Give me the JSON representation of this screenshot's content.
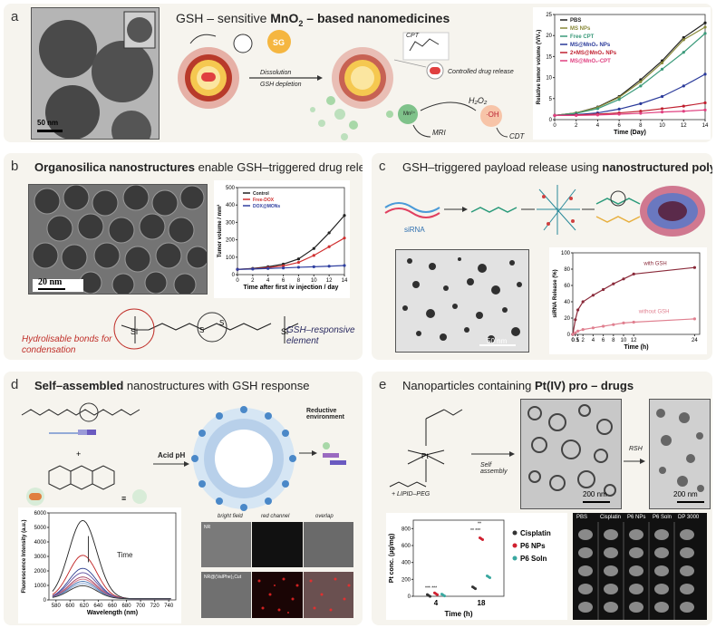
{
  "panels": {
    "a": {
      "label": "a",
      "title_pre": "GSH – sensitive ",
      "title_bold": "MnO",
      "title_sub": "2",
      "title_bold2": " – based nanomedicines",
      "scale": "50 nm",
      "sg": "SG",
      "cpt": "CPT",
      "dissolution": "Dissolution",
      "gsh_depletion": "GSH depletion",
      "controlled": "Controlled drug release",
      "h2o2": "H₂O₂",
      "mn": "Mn²⁺",
      "oh": "·OH",
      "mri": "MRI",
      "cdt": "CDT"
    },
    "b": {
      "label": "b",
      "title_bold": "Organosilica nanostructures",
      "title_post": " enable GSH–triggered drug release",
      "scale": "20 nm",
      "hydrolisable": "Hydrolisable bonds for condensation",
      "gsh_element": "GSH–responsive element"
    },
    "c": {
      "label": "c",
      "title_pre": "GSH–triggered payload release using ",
      "title_bold": "nanostructured polymers",
      "sirna": "siRNA",
      "scale": "50 nm"
    },
    "d": {
      "label": "d",
      "title_bold": "Self–assembled",
      "title_post": " nanostructures with GSH response",
      "acid": "Acid pH",
      "reductive": "Reductive environment",
      "bright": "bright field",
      "red": "red channel",
      "overlap": "overlap",
      "nr": "NR",
      "nr2": "NR@(ValPhe)₂Cut",
      "time": "Time"
    },
    "e": {
      "label": "e",
      "title_pre": "Nanoparticles containing ",
      "title_bold": "Pt(IV) pro – drugs",
      "self_assembly": "Self assembly",
      "lipid": "+ LIPID–PEG",
      "rsh": "RSH",
      "scale1": "200 nm",
      "scale2": "200 nm",
      "pt": "Pt",
      "cols": [
        "PBS",
        "Cisplatin",
        "P6 NPs",
        "P6 Soln",
        "DP 3000"
      ],
      "stars1": "*** ***",
      "stars2": "** ***",
      "stars3": "**"
    }
  },
  "chart_data": [
    {
      "id": "a",
      "type": "line",
      "xlabel": "Time (Day)",
      "ylabel": "Relative tumor volume (V/V₀)",
      "x": [
        0,
        2,
        4,
        6,
        8,
        10,
        12,
        14
      ],
      "xlim": [
        0,
        14
      ],
      "ylim": [
        0,
        25
      ],
      "yticks": [
        0,
        5,
        10,
        15,
        20,
        25
      ],
      "series": [
        {
          "name": "PBS",
          "color": "#222222",
          "values": [
            1,
            1.6,
            3.0,
            5.5,
            9.5,
            14.0,
            19.5,
            23.0
          ]
        },
        {
          "name": "MS NPs",
          "color": "#8a8a3a",
          "values": [
            1,
            1.6,
            2.9,
            5.3,
            9.0,
            13.5,
            19.0,
            22.0
          ]
        },
        {
          "name": "Free CPT",
          "color": "#3a9a7a",
          "values": [
            1,
            1.5,
            2.6,
            4.8,
            8.0,
            12.0,
            16.0,
            20.5
          ]
        },
        {
          "name": "MS@MnO₂ NPs",
          "color": "#2a3a9a",
          "values": [
            1,
            1.2,
            1.6,
            2.5,
            3.8,
            5.5,
            8.0,
            10.8
          ]
        },
        {
          "name": "2×MS@MnO₂ NPs",
          "color": "#c02030",
          "values": [
            1,
            1.1,
            1.3,
            1.6,
            2.0,
            2.6,
            3.2,
            4.0
          ]
        },
        {
          "name": "MS@MnO₂-CPT",
          "color": "#e04080",
          "values": [
            1,
            1.0,
            1.1,
            1.3,
            1.5,
            1.8,
            2.0,
            2.3
          ]
        }
      ]
    },
    {
      "id": "b",
      "type": "line",
      "xlabel": "Time after first iv injection / day",
      "ylabel": "Tumor volume / mm³",
      "x": [
        0,
        2,
        4,
        6,
        8,
        10,
        12,
        14
      ],
      "xlim": [
        0,
        14
      ],
      "ylim": [
        0,
        500
      ],
      "yticks": [
        0,
        100,
        200,
        300,
        400,
        500
      ],
      "series": [
        {
          "name": "Control",
          "color": "#222222",
          "values": [
            30,
            35,
            45,
            60,
            90,
            150,
            240,
            340
          ]
        },
        {
          "name": "Free-DOX",
          "color": "#d03030",
          "values": [
            30,
            33,
            40,
            50,
            70,
            110,
            160,
            210
          ]
        },
        {
          "name": "DOX@MONs",
          "color": "#3040a0",
          "values": [
            30,
            32,
            35,
            38,
            42,
            45,
            48,
            52
          ]
        }
      ]
    },
    {
      "id": "c",
      "type": "line",
      "xlabel": "Time (h)",
      "ylabel": "siRNA Release (%)",
      "x": [
        0,
        0.5,
        1,
        2,
        4,
        6,
        8,
        10,
        12,
        24
      ],
      "xlim": [
        0,
        25
      ],
      "ylim": [
        0,
        100
      ],
      "yticks": [
        0,
        20,
        40,
        60,
        80,
        100
      ],
      "series": [
        {
          "name": "with GSH",
          "color": "#8a2a3a",
          "values": [
            0,
            18,
            30,
            40,
            48,
            55,
            62,
            68,
            74,
            82
          ]
        },
        {
          "name": "without GSH",
          "color": "#e08090",
          "values": [
            0,
            2,
            4,
            6,
            8,
            10,
            12,
            14,
            15,
            19
          ]
        }
      ]
    },
    {
      "id": "d",
      "type": "line",
      "xlabel": "Wavelength (nm)",
      "ylabel": "Fluorescence Intensity (a.u.)",
      "xlim": [
        570,
        750
      ],
      "xticks": [
        580,
        600,
        620,
        640,
        660,
        680,
        700,
        720,
        740
      ],
      "ylim": [
        0,
        6000
      ],
      "yticks": [
        0,
        1000,
        2000,
        3000,
        4000,
        5000,
        6000
      ],
      "peaks": [
        5400,
        3000,
        2100,
        1800,
        1500,
        1350,
        1200,
        1050,
        900
      ],
      "colors": [
        "#222222",
        "#c02020",
        "#304090",
        "#6050a0",
        "#a04060",
        "#d07080",
        "#4070b0",
        "#80a0d0",
        "#303030"
      ]
    },
    {
      "id": "e",
      "type": "scatter",
      "xlabel": "Time (h)",
      "ylabel": "Pt conc. (µg/mg)",
      "categories": [
        "4",
        "18"
      ],
      "ylim": [
        0,
        900
      ],
      "yticks": [
        0,
        200,
        400,
        600,
        800
      ],
      "series": [
        {
          "name": "Cisplatin",
          "color": "#333333",
          "values": [
            10,
            100
          ]
        },
        {
          "name": "P6 NPs",
          "color": "#d02030",
          "values": [
            30,
            680
          ]
        },
        {
          "name": "P6 Soln",
          "color": "#3aa8a0",
          "values": [
            15,
            230
          ]
        }
      ]
    }
  ]
}
